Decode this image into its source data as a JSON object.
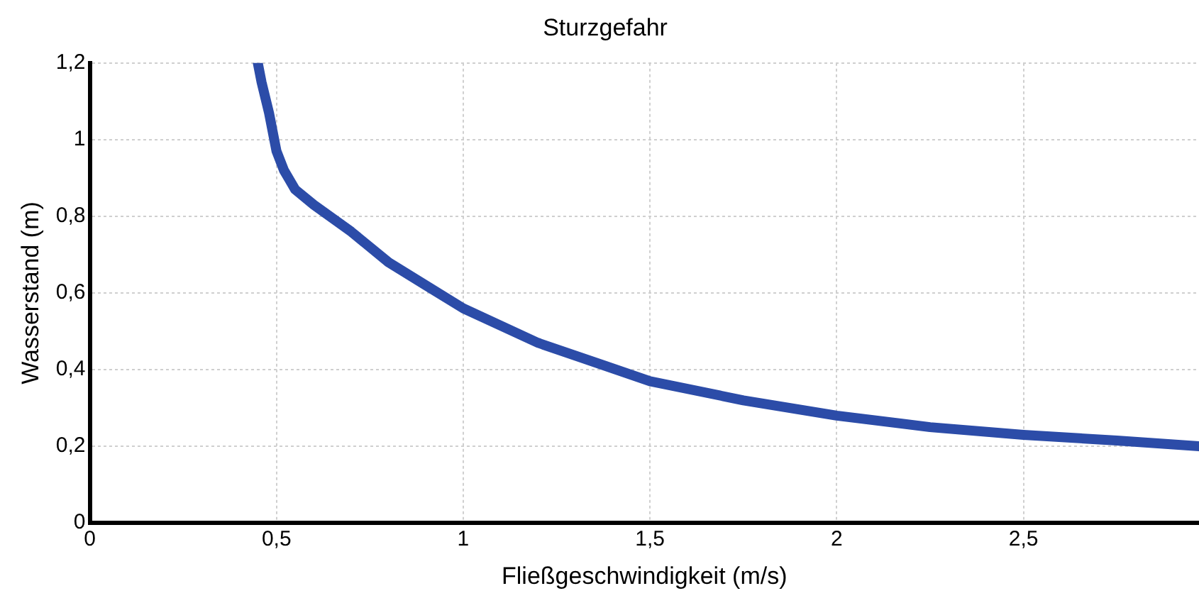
{
  "chart_data": {
    "type": "line",
    "title": "Sturzgefahr",
    "xlabel": "Fließgeschwindigkeit (m/s)",
    "ylabel": "Wasserstand (m)",
    "x": [
      0.45,
      0.46,
      0.48,
      0.5,
      0.52,
      0.55,
      0.6,
      0.7,
      0.8,
      0.9,
      1,
      1.2,
      1.5,
      1.75,
      2,
      2.25,
      2.5,
      2.75,
      2.97
    ],
    "series": [
      {
        "color": "#2c4ca8",
        "values": [
          1.2,
          1.15,
          1.07,
          0.97,
          0.92,
          0.87,
          0.83,
          0.76,
          0.68,
          0.62,
          0.56,
          0.47,
          0.37,
          0.32,
          0.28,
          0.25,
          0.23,
          0.215,
          0.2
        ]
      }
    ],
    "xlim": [
      0,
      2.97
    ],
    "ylim": [
      0,
      1.2
    ],
    "xticks": [
      0,
      {
        "value": 0.5,
        "label": "0,5"
      },
      1,
      {
        "value": 1.5,
        "label": "1,5"
      },
      2,
      {
        "value": 2.5,
        "label": "2,5"
      }
    ],
    "yticks": [
      0,
      {
        "value": 0.2,
        "label": "0,2"
      },
      {
        "value": 0.4,
        "label": "0,4"
      },
      {
        "value": 0.6,
        "label": "0,6"
      },
      {
        "value": 0.8,
        "label": "0,8"
      },
      1,
      {
        "value": 1.2,
        "label": "1,2"
      }
    ],
    "grid": true,
    "legend": false,
    "marker": "none",
    "line_style": "solid"
  }
}
